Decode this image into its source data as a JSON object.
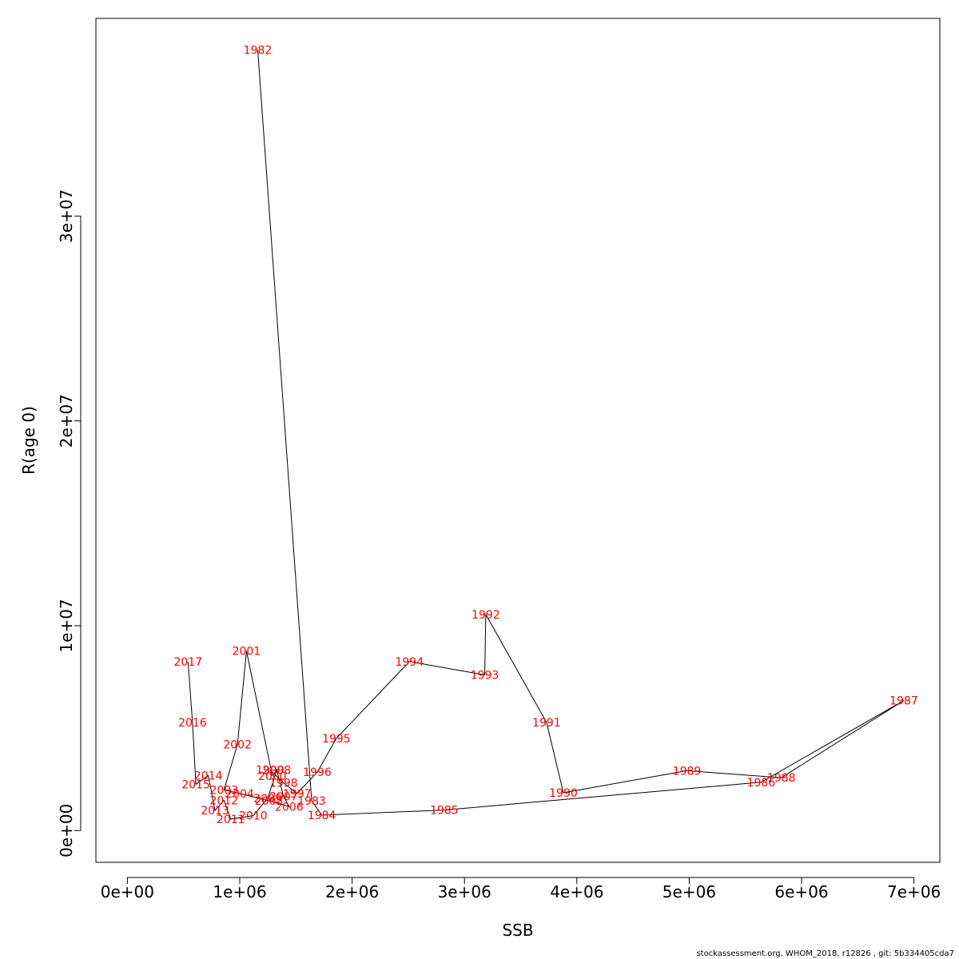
{
  "chart_data": {
    "type": "line",
    "xlabel": "SSB",
    "ylabel": "R(age 0)",
    "xlim": [
      -280000,
      7230000
    ],
    "ylim": [
      -1550000,
      39650000
    ],
    "x_ticks": [
      0,
      1000000,
      2000000,
      3000000,
      4000000,
      5000000,
      6000000,
      7000000
    ],
    "x_tick_labels": [
      "0e+00",
      "1e+06",
      "2e+06",
      "3e+06",
      "4e+06",
      "5e+06",
      "6e+06",
      "7e+06"
    ],
    "y_ticks": [
      0,
      10000000,
      20000000,
      30000000
    ],
    "y_tick_labels": [
      "0e+00",
      "1e+07",
      "2e+07",
      "3e+07"
    ],
    "line_color": "#000000",
    "label_color": "#ff0000",
    "points": [
      {
        "label": "1982",
        "x": 1160000,
        "y": 38100000
      },
      {
        "label": "1983",
        "x": 1640000,
        "y": 1450000
      },
      {
        "label": "1984",
        "x": 1730000,
        "y": 750000
      },
      {
        "label": "1985",
        "x": 2820000,
        "y": 1000000
      },
      {
        "label": "1986",
        "x": 5640000,
        "y": 2360000
      },
      {
        "label": "1987",
        "x": 6910000,
        "y": 6350000
      },
      {
        "label": "1988",
        "x": 5820000,
        "y": 2580000
      },
      {
        "label": "1989",
        "x": 4980000,
        "y": 2920000
      },
      {
        "label": "1990",
        "x": 3880000,
        "y": 1850000
      },
      {
        "label": "1991",
        "x": 3730000,
        "y": 5280000
      },
      {
        "label": "1992",
        "x": 3190000,
        "y": 10550000
      },
      {
        "label": "1993",
        "x": 3180000,
        "y": 7600000
      },
      {
        "label": "1994",
        "x": 2510000,
        "y": 8250000
      },
      {
        "label": "1995",
        "x": 1860000,
        "y": 4500000
      },
      {
        "label": "1996",
        "x": 1690000,
        "y": 2850000
      },
      {
        "label": "1997",
        "x": 1510000,
        "y": 1810000
      },
      {
        "label": "1998",
        "x": 1390000,
        "y": 2330000
      },
      {
        "label": "1999",
        "x": 1270000,
        "y": 2960000
      },
      {
        "label": "2000",
        "x": 1290000,
        "y": 2670000
      },
      {
        "label": "2001",
        "x": 1060000,
        "y": 8770000
      },
      {
        "label": "2002",
        "x": 980000,
        "y": 4210000
      },
      {
        "label": "2003",
        "x": 860000,
        "y": 1990000
      },
      {
        "label": "2004",
        "x": 1000000,
        "y": 1810000
      },
      {
        "label": "2005",
        "x": 1260000,
        "y": 1450000
      },
      {
        "label": "2006",
        "x": 1440000,
        "y": 1170000
      },
      {
        "label": "2007",
        "x": 1390000,
        "y": 1660000
      },
      {
        "label": "2008",
        "x": 1330000,
        "y": 2960000
      },
      {
        "label": "2009",
        "x": 1250000,
        "y": 1580000
      },
      {
        "label": "2010",
        "x": 1120000,
        "y": 730000
      },
      {
        "label": "2011",
        "x": 920000,
        "y": 560000
      },
      {
        "label": "2012",
        "x": 860000,
        "y": 1480000
      },
      {
        "label": "2013",
        "x": 780000,
        "y": 980000
      },
      {
        "label": "2014",
        "x": 720000,
        "y": 2690000
      },
      {
        "label": "2015",
        "x": 610000,
        "y": 2260000
      },
      {
        "label": "2016",
        "x": 580000,
        "y": 5270000
      },
      {
        "label": "2017",
        "x": 540000,
        "y": 8240000
      }
    ]
  },
  "footer": {
    "text": "stockassessment.org, WHOM_2018, r12826 , git: 5b334405cda7"
  }
}
